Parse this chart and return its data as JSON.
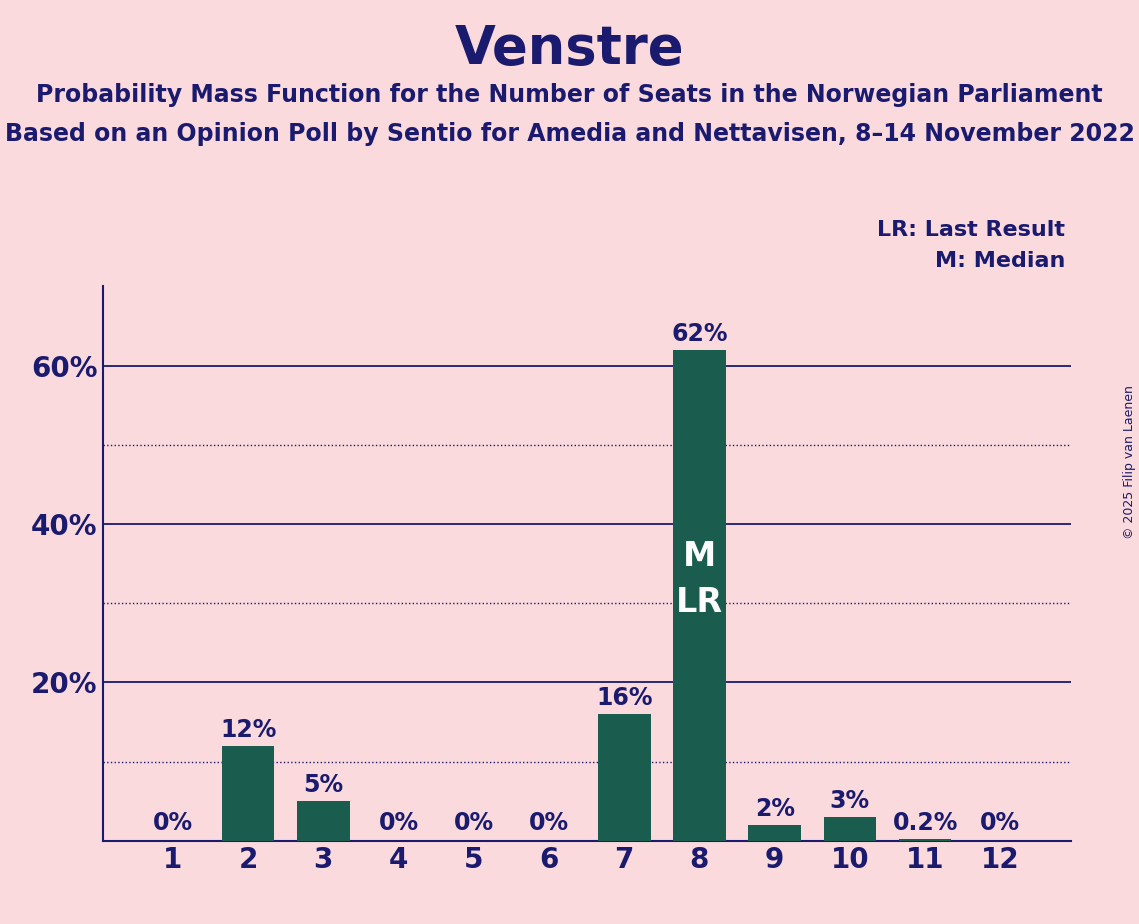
{
  "title": "Venstre",
  "subtitle1": "Probability Mass Function for the Number of Seats in the Norwegian Parliament",
  "subtitle2": "Based on an Opinion Poll by Sentio for Amedia and Nettavisen, 8–14 November 2022",
  "copyright": "© 2025 Filip van Laenen",
  "categories": [
    1,
    2,
    3,
    4,
    5,
    6,
    7,
    8,
    9,
    10,
    11,
    12
  ],
  "values": [
    0.0,
    12.0,
    5.0,
    0.0,
    0.0,
    0.0,
    16.0,
    62.0,
    2.0,
    3.0,
    0.2,
    0.0
  ],
  "bar_color": "#1a5c4e",
  "background_color": "#fadadd",
  "text_color": "#1a1a6e",
  "bar_labels": [
    "0%",
    "12%",
    "5%",
    "0%",
    "0%",
    "0%",
    "16%",
    "62%",
    "2%",
    "3%",
    "0.2%",
    "0%"
  ],
  "median_bar_idx": 7,
  "legend_lr": "LR: Last Result",
  "legend_m": "M: Median",
  "solid_gridlines": [
    20,
    40,
    60
  ],
  "dotted_gridlines": [
    10,
    30,
    50
  ],
  "ylim": [
    0,
    70
  ],
  "title_fontsize": 38,
  "subtitle_fontsize": 17,
  "bar_label_fontsize": 17,
  "tick_fontsize": 20,
  "legend_fontsize": 16,
  "inbar_label_fontsize": 24,
  "copyright_fontsize": 9
}
